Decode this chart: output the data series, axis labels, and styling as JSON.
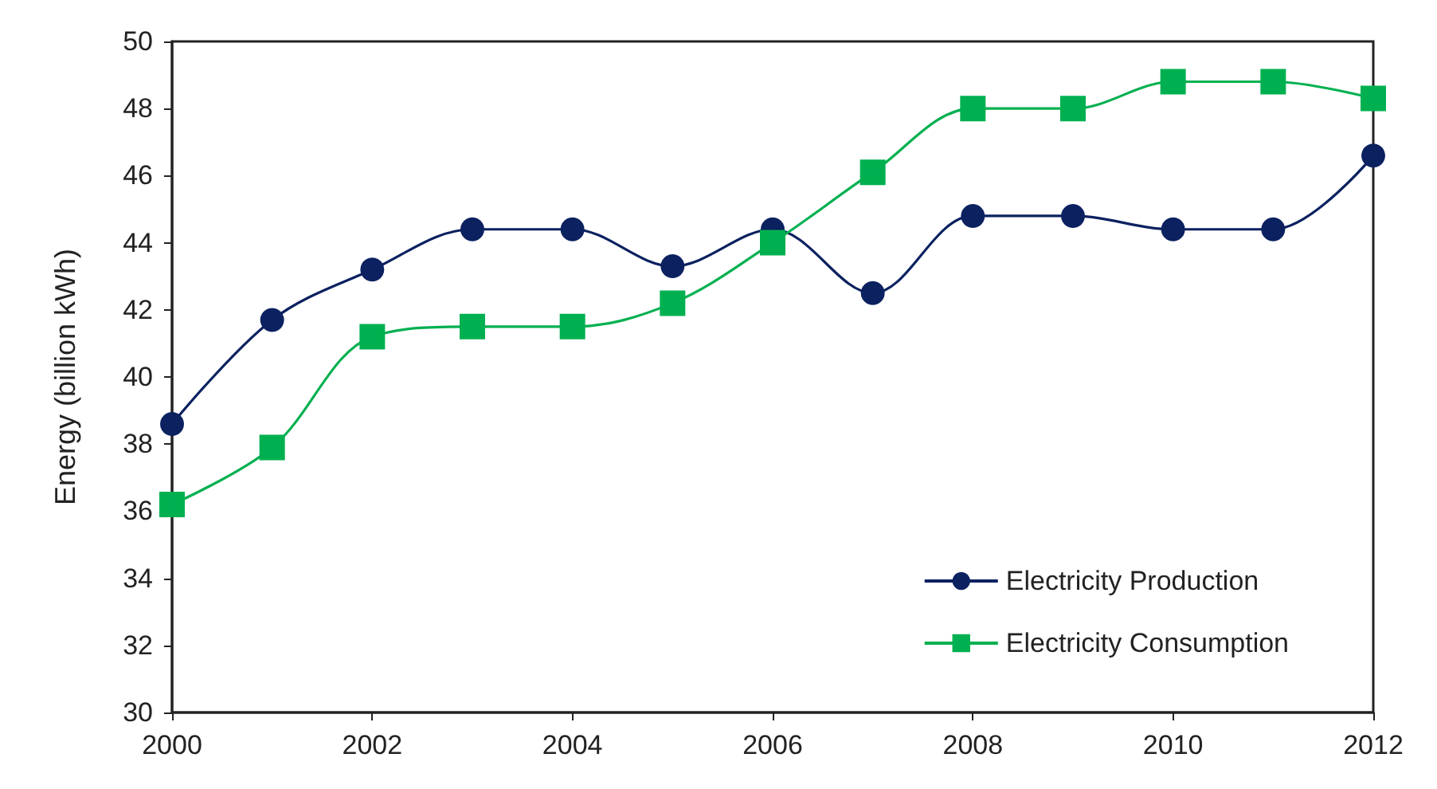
{
  "chart_data": {
    "type": "line",
    "ylabel": "Energy (billion kWh)",
    "x": [
      2000,
      2001,
      2002,
      2003,
      2004,
      2005,
      2006,
      2007,
      2008,
      2009,
      2010,
      2011,
      2012
    ],
    "series": [
      {
        "name": "Electricity Production",
        "color": "#0b2160",
        "marker": "circle",
        "values": [
          38.6,
          41.7,
          43.2,
          44.4,
          44.4,
          43.3,
          44.4,
          42.5,
          44.8,
          44.8,
          44.4,
          44.4,
          46.6
        ]
      },
      {
        "name": "Electricity Consumption",
        "color": "#00b050",
        "marker": "square",
        "values": [
          36.2,
          37.9,
          41.2,
          41.5,
          41.5,
          42.2,
          44.0,
          46.1,
          48.0,
          48.0,
          48.8,
          48.8,
          48.3
        ]
      }
    ],
    "xlim": [
      2000,
      2012
    ],
    "xticks": [
      2000,
      2002,
      2004,
      2006,
      2008,
      2010,
      2012
    ],
    "ylim": [
      30,
      50
    ],
    "yticks": [
      30,
      32,
      34,
      36,
      38,
      40,
      42,
      44,
      46,
      48,
      50
    ],
    "grid": false,
    "legend": "bottom right",
    "line_style": "solid"
  }
}
